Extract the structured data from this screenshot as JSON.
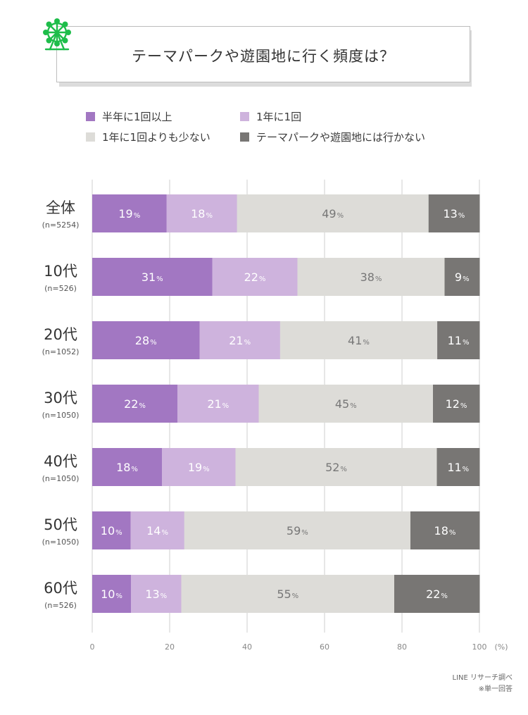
{
  "title": "テーマパークや遊園地に行く頻度は？",
  "icon": "ferris-wheel-icon",
  "colors": {
    "accent": "#1ebd4a",
    "semi_annual": "#a277c2",
    "yearly": "#ceb3dd",
    "less": "#dddcd8",
    "never": "#787674"
  },
  "legend": [
    {
      "label": "半年に1回以上",
      "color": "#a277c2"
    },
    {
      "label": "1年に1回",
      "color": "#ceb3dd"
    },
    {
      "label": "1年に1回よりも少ない",
      "color": "#dddcd8"
    },
    {
      "label": "テーマパークや遊園地には行かない",
      "color": "#787674"
    }
  ],
  "chart_data": {
    "type": "bar",
    "orientation": "horizontal",
    "stacked": true,
    "categories": [
      {
        "label": "全体",
        "n": "(n=5254)"
      },
      {
        "label": "10代",
        "n": "(n=526)"
      },
      {
        "label": "20代",
        "n": "(n=1052)"
      },
      {
        "label": "30代",
        "n": "(n=1050)"
      },
      {
        "label": "40代",
        "n": "(n=1050)"
      },
      {
        "label": "50代",
        "n": "(n=1050)"
      },
      {
        "label": "60代",
        "n": "(n=526)"
      }
    ],
    "series": [
      {
        "name": "半年に1回以上",
        "values": [
          19,
          31,
          28,
          22,
          18,
          10,
          10
        ],
        "display": [
          19,
          31,
          28,
          22,
          18,
          10,
          10
        ]
      },
      {
        "name": "1年に1回",
        "values": [
          18,
          22,
          21,
          21,
          19,
          14,
          13
        ],
        "display": [
          18,
          22,
          21,
          21,
          19,
          14,
          13
        ]
      },
      {
        "name": "1年に1回よりも少ない",
        "values": [
          49,
          38,
          41,
          45,
          52,
          59,
          55
        ],
        "display": [
          49,
          38,
          41,
          45,
          52,
          59,
          55
        ]
      },
      {
        "name": "テーマパークや遊園地には行かない",
        "values": [
          13,
          9,
          11,
          12,
          11,
          18,
          22
        ],
        "display": [
          13,
          9,
          11,
          12,
          11,
          18,
          22
        ]
      }
    ],
    "value_suffix": "%",
    "x_ticks": [
      0,
      20,
      40,
      60,
      80,
      100
    ],
    "x_unit": "(%)",
    "xlim": [
      0,
      100
    ],
    "grid": true
  },
  "footer": {
    "source": "LINE リサーチ調べ",
    "note": "※単一回答"
  }
}
